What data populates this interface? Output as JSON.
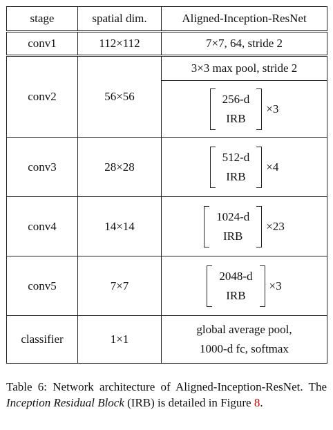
{
  "table": {
    "headers": [
      "stage",
      "spatial dim.",
      "Aligned-Inception-ResNet"
    ],
    "rows": {
      "conv1": {
        "stage": "conv1",
        "dim": "112×112",
        "spec": "7×7, 64, stride 2"
      },
      "conv2": {
        "stage": "conv2",
        "dim": "56×56",
        "pool": "3×3 max pool, stride 2",
        "block_top": "256-d",
        "block_bottom": "IRB",
        "repeat": "×3"
      },
      "conv3": {
        "stage": "conv3",
        "dim": "28×28",
        "block_top": "512-d",
        "block_bottom": "IRB",
        "repeat": "×4"
      },
      "conv4": {
        "stage": "conv4",
        "dim": "14×14",
        "block_top": "1024-d",
        "block_bottom": "IRB",
        "repeat": "×23"
      },
      "conv5": {
        "stage": "conv5",
        "dim": "7×7",
        "block_top": "2048-d",
        "block_bottom": "IRB",
        "repeat": "×3"
      },
      "classifier": {
        "stage": "classifier",
        "dim": "1×1",
        "line1": "global average pool,",
        "line2": "1000-d fc, softmax"
      }
    }
  },
  "caption": {
    "lead": "Table 6:  Network architecture of Aligned-Inception-ResNet. The ",
    "italic": "Inception Residual Block",
    "middle": " (IRB) is detailed in Figure ",
    "ref": "8",
    "end": "."
  }
}
